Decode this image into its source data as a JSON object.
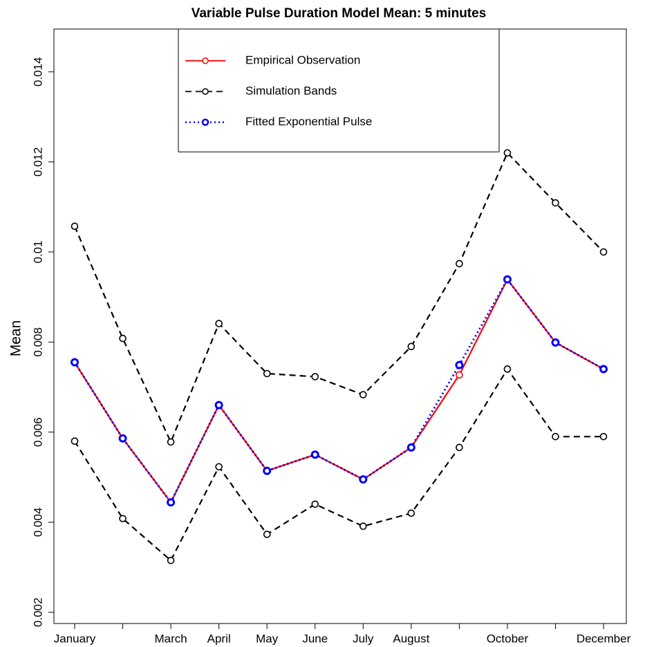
{
  "chart_data": {
    "type": "line",
    "title": "Variable Pulse Duration Model Mean: 5 minutes",
    "y_label": "Mean",
    "categories": [
      "January",
      null,
      "March",
      "April",
      "May",
      "June",
      "July",
      "August",
      null,
      "October",
      null,
      "December"
    ],
    "series": [
      {
        "name": "Simulation Bands",
        "color": "#000000",
        "dash": "dashed",
        "values": [
          0.01057,
          0.00808,
          0.00578,
          0.00841,
          0.0073,
          0.00723,
          0.00683,
          0.0079,
          0.00974,
          0.0122,
          0.01109,
          0.01
        ],
        "lower": [
          0.0058,
          0.00408,
          0.00315,
          0.00523,
          0.00373,
          0.0044,
          0.00391,
          0.0042,
          0.00566,
          0.0074,
          0.0059,
          0.0059
        ]
      },
      {
        "name": "Empirical Observation",
        "color": "#ff0000",
        "dash": "solid",
        "values": [
          0.00755,
          0.00586,
          0.00444,
          0.0066,
          0.00514,
          0.0055,
          0.00495,
          0.00566,
          0.00727,
          0.00939,
          0.00799,
          0.0074
        ]
      },
      {
        "name": "Fitted Exponential Pulse",
        "color": "#0000ff",
        "dash": "dotted",
        "values": [
          0.00755,
          0.00586,
          0.00444,
          0.0066,
          0.00514,
          0.0055,
          0.00495,
          0.00566,
          0.00749,
          0.00939,
          0.00799,
          0.0074
        ]
      }
    ],
    "ylim": [
      0.00175,
      0.01495
    ],
    "yticks": [
      0.002,
      0.004,
      0.006,
      0.008,
      0.01,
      0.012,
      0.014
    ],
    "ytick_labels_order": null
  }
}
